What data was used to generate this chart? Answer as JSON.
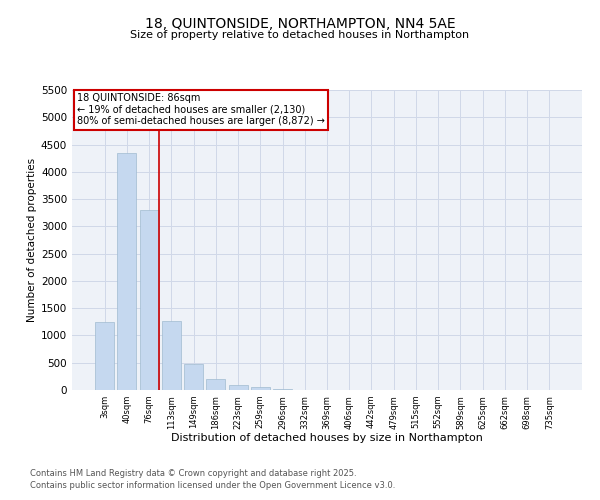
{
  "title": "18, QUINTONSIDE, NORTHAMPTON, NN4 5AE",
  "subtitle": "Size of property relative to detached houses in Northampton",
  "xlabel": "Distribution of detached houses by size in Northampton",
  "ylabel": "Number of detached properties",
  "bar_color": "#c5d8ef",
  "bar_edgecolor": "#a0bbd0",
  "categories": [
    "3sqm",
    "40sqm",
    "76sqm",
    "113sqm",
    "149sqm",
    "186sqm",
    "223sqm",
    "259sqm",
    "296sqm",
    "332sqm",
    "369sqm",
    "406sqm",
    "442sqm",
    "479sqm",
    "515sqm",
    "552sqm",
    "589sqm",
    "625sqm",
    "662sqm",
    "698sqm",
    "735sqm"
  ],
  "values": [
    1250,
    4350,
    3300,
    1270,
    480,
    200,
    100,
    50,
    20,
    5,
    2,
    1,
    0,
    0,
    0,
    0,
    0,
    0,
    0,
    0,
    0
  ],
  "ylim": [
    0,
    5500
  ],
  "yticks": [
    0,
    500,
    1000,
    1500,
    2000,
    2500,
    3000,
    3500,
    4000,
    4500,
    5000,
    5500
  ],
  "red_line_x": 2.425,
  "annotation_title": "18 QUINTONSIDE: 86sqm",
  "annotation_line1": "← 19% of detached houses are smaller (2,130)",
  "annotation_line2": "80% of semi-detached houses are larger (8,872) →",
  "annotation_box_color": "#ffffff",
  "annotation_border_color": "#cc0000",
  "grid_color": "#d0d8e8",
  "bg_color": "#eef2f8",
  "footer1": "Contains HM Land Registry data © Crown copyright and database right 2025.",
  "footer2": "Contains public sector information licensed under the Open Government Licence v3.0."
}
